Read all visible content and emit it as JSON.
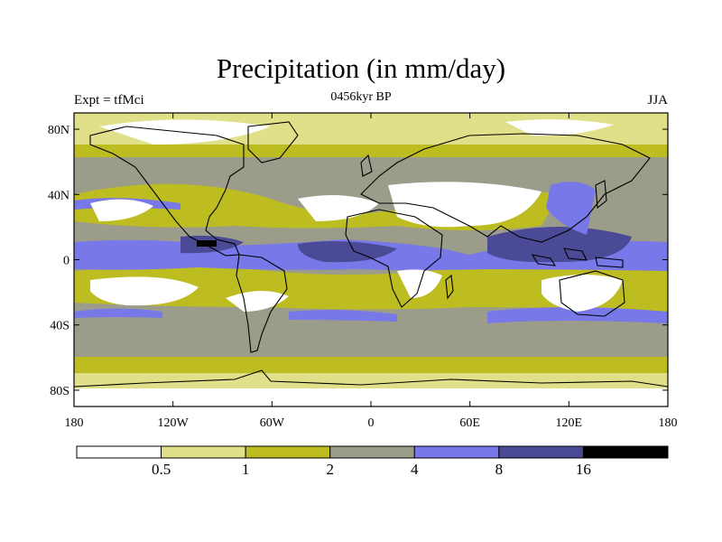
{
  "header": {
    "title": "Precipitation (in mm/day)",
    "left": "Expt = tfMci",
    "center": "0456kyr BP",
    "right": "JJA"
  },
  "map": {
    "lat_ticks": [
      "80N",
      "40N",
      "0",
      "40S",
      "80S"
    ],
    "lat_values": [
      80,
      40,
      0,
      -40,
      -80
    ],
    "lon_ticks": [
      "180",
      "120W",
      "60W",
      "0",
      "60E",
      "120E",
      "180"
    ],
    "lon_values": [
      -180,
      -120,
      -60,
      0,
      60,
      120,
      180
    ],
    "lat_range": [
      -90,
      90
    ],
    "lon_range": [
      -180,
      180
    ],
    "projection": "cylindrical equidistant",
    "coastline_color": "#000000"
  },
  "colorbar": {
    "levels": [
      "0.5",
      "1",
      "2",
      "4",
      "8",
      "16"
    ],
    "colors": [
      "#ffffff",
      "#e0e08a",
      "#bdbd22",
      "#9c9c8a",
      "#7878e8",
      "#4a4a96",
      "#000000"
    ]
  }
}
